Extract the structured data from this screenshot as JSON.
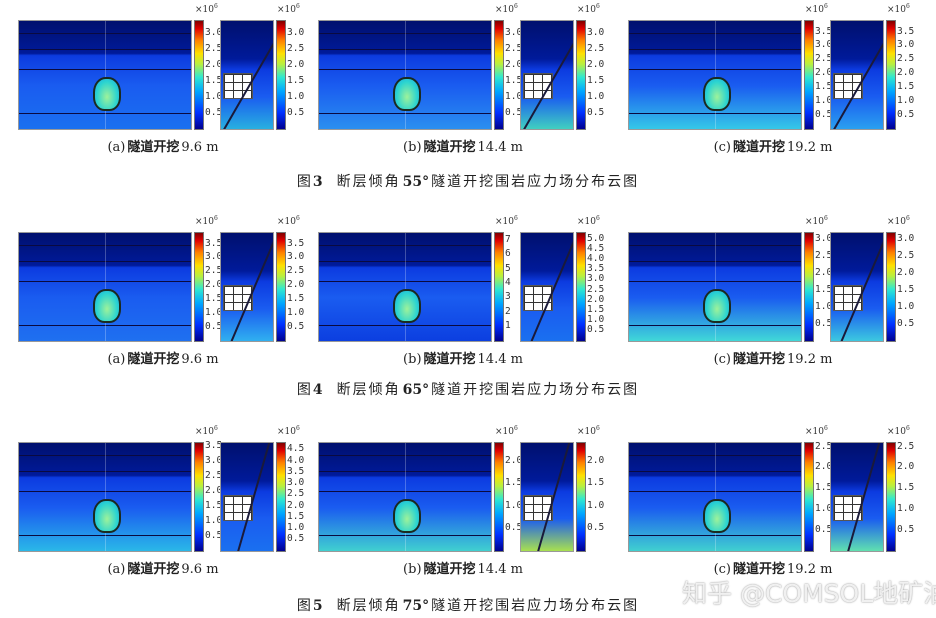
{
  "exponent_base": "×10",
  "exponent_power": "6",
  "figures": [
    {
      "label": "图",
      "number": "3",
      "title_prefix": "断层倾角",
      "angle": "55°",
      "title_suffix": "隧道开挖围岩应力场分布云图",
      "panels": [
        {
          "tag": "(a)",
          "text": "隧道开挖",
          "distance": "9.6 m",
          "main_max": 3.4,
          "main_ticks": [
            "3.0",
            "2.5",
            "2.0",
            "1.5",
            "1.0",
            "0.5"
          ],
          "small_max": 3.4,
          "small_ticks": [
            "3.0",
            "2.5",
            "2.0",
            "1.5",
            "1.0",
            "0.5"
          ]
        },
        {
          "tag": "(b)",
          "text": "隧道开挖",
          "distance": "14.4 m",
          "main_max": 3.4,
          "main_ticks": [
            "3.0",
            "2.5",
            "2.0",
            "1.5",
            "1.0",
            "0.5"
          ],
          "small_max": 3.4,
          "small_ticks": [
            "3.0",
            "2.5",
            "2.0",
            "1.5",
            "1.0",
            "0.5"
          ]
        },
        {
          "tag": "(c)",
          "text": "隧道开挖",
          "distance": "19.2 m",
          "main_max": 3.9,
          "main_ticks": [
            "3.5",
            "3.0",
            "2.5",
            "2.0",
            "1.5",
            "1.0",
            "0.5"
          ],
          "small_max": 3.9,
          "small_ticks": [
            "3.5",
            "3.0",
            "2.5",
            "2.0",
            "1.5",
            "1.0",
            "0.5"
          ]
        }
      ]
    },
    {
      "label": "图",
      "number": "4",
      "title_prefix": "断层倾角",
      "angle": "65°",
      "title_suffix": "隧道开挖围岩应力场分布云图",
      "panels": [
        {
          "tag": "(a)",
          "text": "隧道开挖",
          "distance": "9.6 m",
          "main_max": 3.9,
          "main_ticks": [
            "3.5",
            "3.0",
            "2.5",
            "2.0",
            "1.5",
            "1.0",
            "0.5"
          ],
          "small_max": 3.9,
          "small_ticks": [
            "3.5",
            "3.0",
            "2.5",
            "2.0",
            "1.5",
            "1.0",
            "0.5"
          ]
        },
        {
          "tag": "(b)",
          "text": "隧道开挖",
          "distance": "14.4 m",
          "main_max": 7.5,
          "main_ticks": [
            "7",
            "6",
            "5",
            "4",
            "3",
            "2",
            "1"
          ],
          "small_max": 5.3,
          "small_ticks": [
            "5.0",
            "4.5",
            "4.0",
            "3.5",
            "3.0",
            "2.5",
            "2.0",
            "1.5",
            "1.0",
            "0.5"
          ]
        },
        {
          "tag": "(c)",
          "text": "隧道开挖",
          "distance": "19.2 m",
          "main_max": 3.2,
          "main_ticks": [
            "3.0",
            "2.5",
            "2.0",
            "1.5",
            "1.0",
            "0.5"
          ],
          "small_max": 3.2,
          "small_ticks": [
            "3.0",
            "2.5",
            "2.0",
            "1.5",
            "1.0",
            "0.5"
          ]
        }
      ]
    },
    {
      "label": "图",
      "number": "5",
      "title_prefix": "断层倾角",
      "angle": "75°",
      "title_suffix": "隧道开挖围岩应力场分布云图",
      "panels": [
        {
          "tag": "(a)",
          "text": "隧道开挖",
          "distance": "9.6 m",
          "main_max": 3.6,
          "main_ticks": [
            "3.5",
            "3.0",
            "2.5",
            "2.0",
            "1.5",
            "1.0",
            "0.5"
          ],
          "small_max": 4.8,
          "small_ticks": [
            "4.5",
            "4.0",
            "3.5",
            "3.0",
            "2.5",
            "2.0",
            "1.5",
            "1.0",
            "0.5"
          ]
        },
        {
          "tag": "(b)",
          "text": "隧道开挖",
          "distance": "14.4 m",
          "main_max": 2.4,
          "main_ticks": [
            "2.0",
            "1.5",
            "1.0",
            "0.5"
          ],
          "small_max": 2.4,
          "small_ticks": [
            "2.0",
            "1.5",
            "1.0",
            "0.5"
          ]
        },
        {
          "tag": "(c)",
          "text": "隧道开挖",
          "distance": "19.2 m",
          "main_max": 2.6,
          "main_ticks": [
            "2.5",
            "2.0",
            "1.5",
            "1.0",
            "0.5"
          ],
          "small_max": 2.6,
          "small_ticks": [
            "2.5",
            "2.0",
            "1.5",
            "1.0",
            "0.5"
          ]
        }
      ]
    }
  ],
  "watermark": "知乎 @COMSOL地矿油"
}
